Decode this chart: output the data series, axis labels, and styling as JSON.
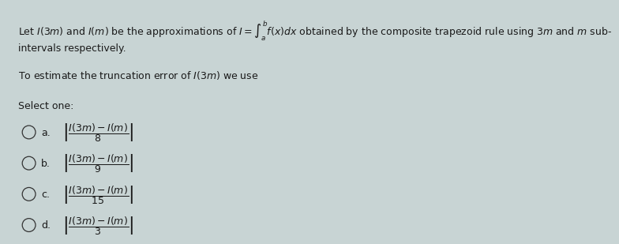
{
  "background_color": "#c8d4d4",
  "text_color": "#1a1a1a",
  "font_size_main": 9.0,
  "font_size_options": 9.0,
  "font_size_select": 9.0,
  "lines": [
    "Let $\\mathit{I}(3m)$ and $\\mathit{I}(m)$ be the approximations of $\\mathit{I} = \\int_a^b f(x)dx$ obtained by the composite trapezoid rule using $3m$ and $m$ sub-",
    "intervals respectively.",
    "",
    "To estimate the truncation error of $\\mathit{I}(3m)$ we use",
    "",
    "Select one:"
  ],
  "options": [
    {
      "label": "a.",
      "formula": "$\\left|\\dfrac{I(3m)-I(m)}{8}\\right|$"
    },
    {
      "label": "b.",
      "formula": "$\\left|\\dfrac{I(3m)-I(m)}{9}\\right|$"
    },
    {
      "label": "c.",
      "formula": "$\\left|\\dfrac{I(3m)-I(m)}{15}\\right|$"
    },
    {
      "label": "d.",
      "formula": "$\\left|\\dfrac{I(3m)-I(m)}{3}\\right|$"
    }
  ]
}
